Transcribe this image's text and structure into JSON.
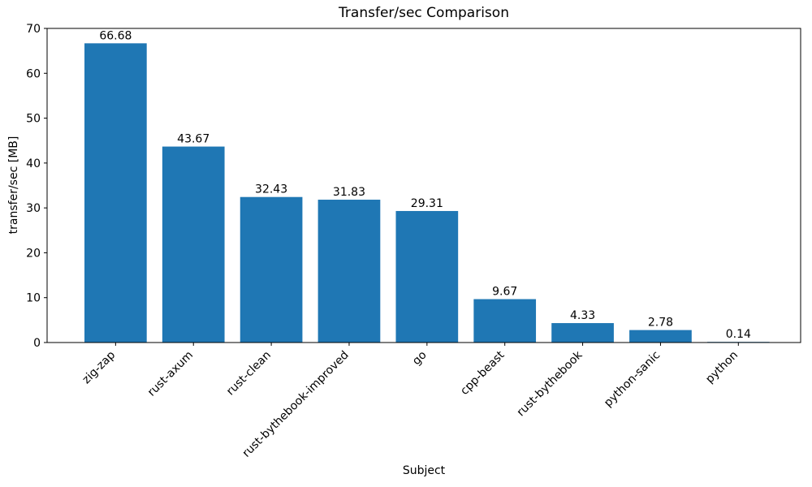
{
  "chart_data": {
    "type": "bar",
    "title": "Transfer/sec Comparison",
    "xlabel": "Subject",
    "ylabel": "transfer/sec [MB]",
    "categories": [
      "zig-zap",
      "rust-axum",
      "rust-clean",
      "rust-bythebook-improved",
      "go",
      "cpp-beast",
      "rust-bythebook",
      "python-sanic",
      "python"
    ],
    "values": [
      66.68,
      43.67,
      32.43,
      31.83,
      29.31,
      9.67,
      4.33,
      2.78,
      0.14
    ],
    "value_labels": [
      "66.68",
      "43.67",
      "32.43",
      "31.83",
      "29.31",
      "9.67",
      "4.33",
      "2.78",
      "0.14"
    ],
    "ylim": [
      0,
      70
    ],
    "yticks": [
      0,
      10,
      20,
      30,
      40,
      50,
      60,
      70
    ],
    "xlim": [
      -0.88,
      8.8
    ],
    "bar_width_units": 0.8,
    "xtick_rotation_deg": 45,
    "grid": false,
    "legend": "none",
    "bar_color": "#1f77b4",
    "axis_color": "#000000"
  }
}
